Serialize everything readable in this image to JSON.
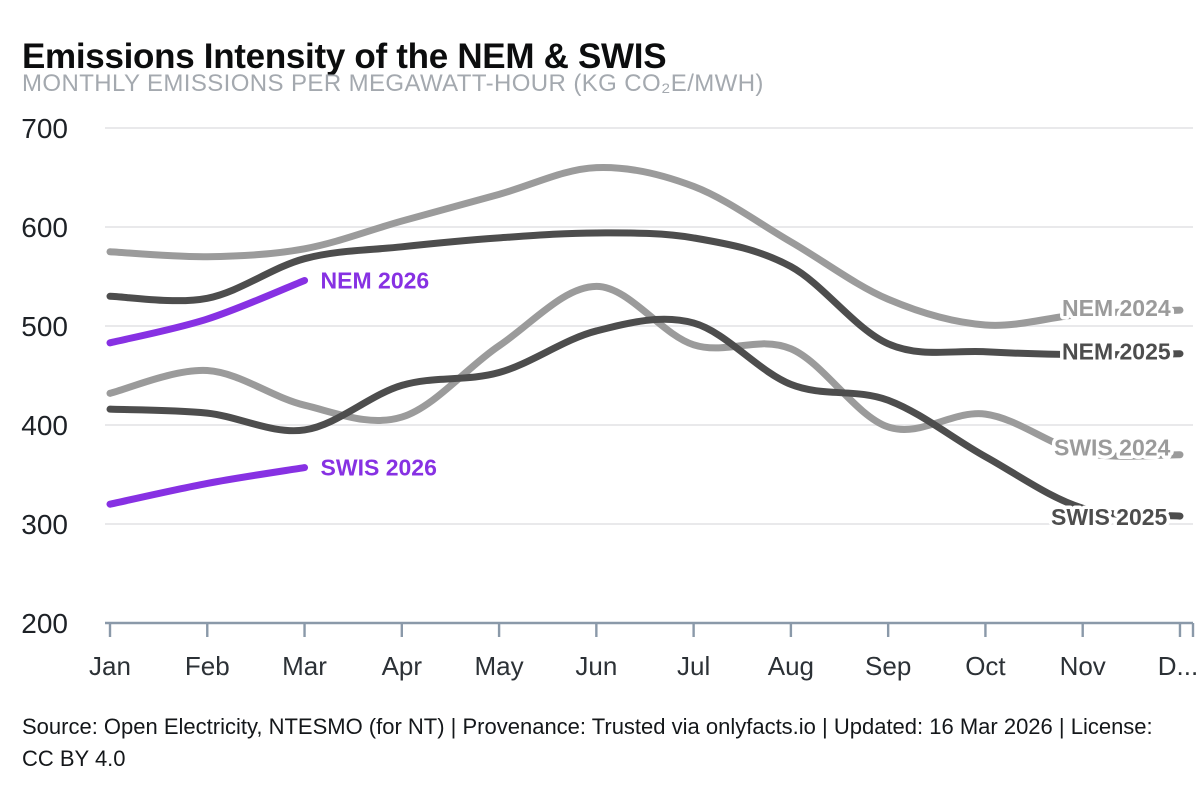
{
  "header": {
    "title": "Emissions Intensity of the NEM & SWIS",
    "subtitle": "MONTHLY EMISSIONS PER MEGAWATT-HOUR (KG CO₂E/MWH)"
  },
  "footer": {
    "text": "Source: Open Electricity, NTESMO (for NT) | Provenance: Trusted via onlyfacts.io | Updated: 16 Mar 2026 | License: CC BY 4.0"
  },
  "chart_data": {
    "type": "line",
    "title": "Emissions Intensity of the NEM & SWIS",
    "subtitle": "MONTHLY EMISSIONS PER MEGAWATT-HOUR (KG CO₂E/MWH)",
    "ylabel": "kg CO₂e/MWh",
    "xlabel": "",
    "x_categories": [
      "Jan",
      "Feb",
      "Mar",
      "Apr",
      "May",
      "Jun",
      "Jul",
      "Aug",
      "Sep",
      "Oct",
      "Nov",
      "Dec"
    ],
    "x_last_label_display": "D...",
    "ylim": [
      200,
      700
    ],
    "y_ticks": [
      200,
      300,
      400,
      500,
      600,
      700
    ],
    "grid": "horizontal",
    "legend_position": "inline-end-labels",
    "colors": {
      "year_2024": "#9b9b9b",
      "year_2025": "#4d4d4d",
      "year_2026": "#8731e3",
      "grid": "#e9e9eb",
      "axis": "#8a99a9"
    },
    "series": [
      {
        "name": "NEM 2024",
        "color": "#9b9b9b",
        "values": [
          575,
          570,
          578,
          606,
          633,
          660,
          641,
          585,
          527,
          501,
          512,
          516
        ]
      },
      {
        "name": "NEM 2025",
        "color": "#4d4d4d",
        "values": [
          530,
          528,
          568,
          580,
          589,
          594,
          589,
          560,
          482,
          474,
          471,
          472
        ]
      },
      {
        "name": "SWIS 2024",
        "color": "#9b9b9b",
        "values": [
          432,
          455,
          420,
          408,
          480,
          540,
          481,
          477,
          398,
          411,
          372,
          370
        ]
      },
      {
        "name": "SWIS 2025",
        "color": "#4d4d4d",
        "values": [
          416,
          412,
          395,
          440,
          453,
          495,
          503,
          441,
          425,
          368,
          316,
          308
        ]
      },
      {
        "name": "NEM 2026",
        "color": "#8731e3",
        "values": [
          483,
          507,
          546
        ]
      },
      {
        "name": "SWIS 2026",
        "color": "#8731e3",
        "values": [
          320,
          341,
          357
        ]
      }
    ]
  }
}
